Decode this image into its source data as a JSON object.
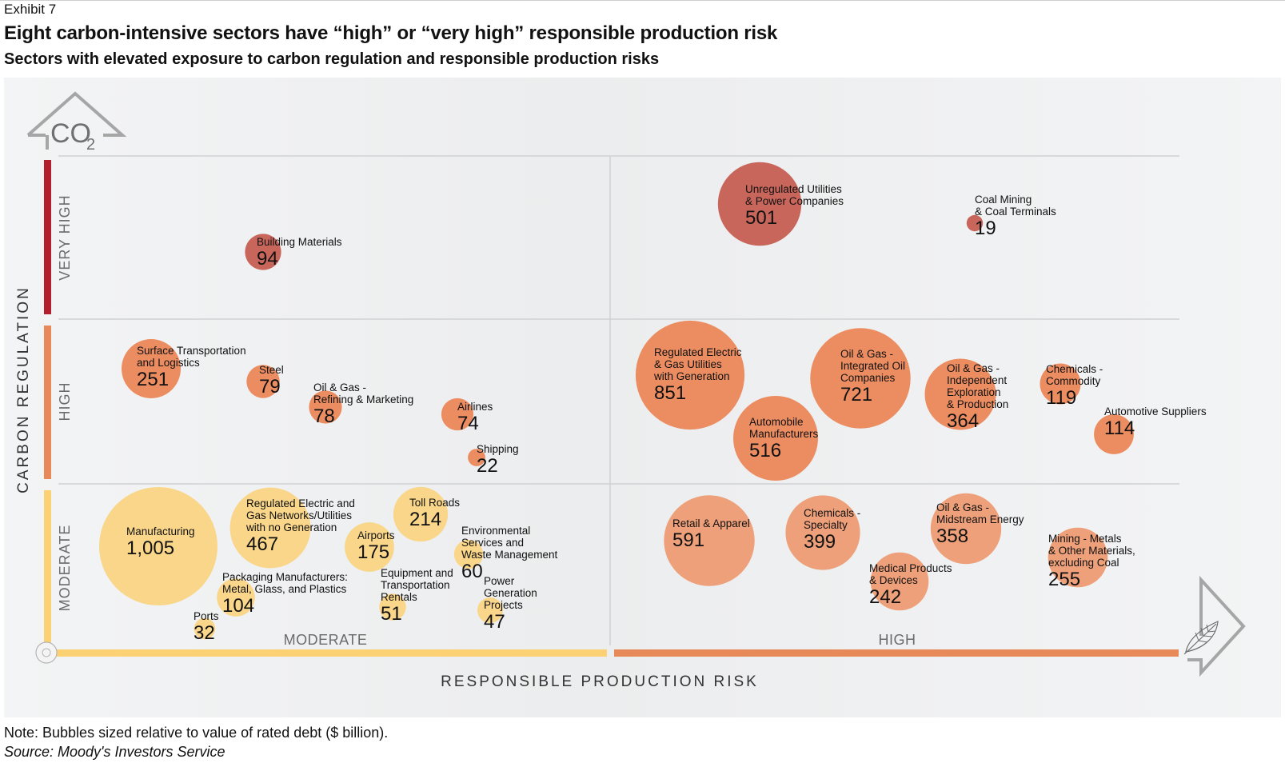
{
  "header": {
    "exhibit": "Exhibit 7",
    "title": "Eight carbon-intensive sectors have “high” or “very high” responsible production risk",
    "subtitle": "Sectors with elevated exposure to carbon regulation and responsible production risks"
  },
  "footer": {
    "note": "Note: Bubbles sized relative to value of rated debt ($ billion).",
    "source": "Source: Moody's Investors Service"
  },
  "icons": {
    "co2": "co2-arrow-icon",
    "co2_text": "CO",
    "co2_sub": "2",
    "leaf": "leaf-arrow-icon",
    "origin": "origin-circle-icon"
  },
  "chart_data": {
    "type": "bubble",
    "title": "Eight carbon-intensive sectors have “high” or “very high” responsible production risk",
    "subtitle": "Sectors with elevated exposure to carbon regulation and responsible production risks",
    "xlabel": "RESPONSIBLE PRODUCTION RISK",
    "ylabel": "CARBON REGULATION",
    "x_categories": [
      "MODERATE",
      "HIGH"
    ],
    "y_categories": [
      "MODERATE",
      "HIGH",
      "VERY HIGH"
    ],
    "size_unit": "Rated debt ($ billion)",
    "colors": {
      "VERY HIGH": "#c9665c",
      "HIGH": "#eb8a5c",
      "MODERATE": "#f9d689",
      "axis_moderate": "#fcd173",
      "axis_high": "#e8895a",
      "axis_very_high": "#b41f2e"
    },
    "grid": true,
    "series": [
      {
        "name": "Unregulated Utilities & Power Companies",
        "lines": [
          "Unregulated Utilities",
          "& Power Companies"
        ],
        "value": 501,
        "value_label": "501",
        "carbon": "VERY HIGH",
        "production": "HIGH"
      },
      {
        "name": "Coal Mining & Coal Terminals",
        "lines": [
          "Coal Mining",
          "& Coal Terminals"
        ],
        "value": 19,
        "value_label": "19",
        "carbon": "VERY HIGH",
        "production": "HIGH"
      },
      {
        "name": "Building Materials",
        "lines": [
          "Building Materials"
        ],
        "value": 94,
        "value_label": "94",
        "carbon": "VERY HIGH",
        "production": "MODERATE"
      },
      {
        "name": "Surface Transportation and Logistics",
        "lines": [
          "Surface Transportation",
          "and Logistics"
        ],
        "value": 251,
        "value_label": "251",
        "carbon": "HIGH",
        "production": "MODERATE"
      },
      {
        "name": "Steel",
        "lines": [
          "Steel"
        ],
        "value": 79,
        "value_label": "79",
        "carbon": "HIGH",
        "production": "MODERATE"
      },
      {
        "name": "Oil & Gas - Refining & Marketing",
        "lines": [
          "Oil & Gas -",
          "Refining & Marketing"
        ],
        "value": 78,
        "value_label": "78",
        "carbon": "HIGH",
        "production": "MODERATE"
      },
      {
        "name": "Airlines",
        "lines": [
          "Airlines"
        ],
        "value": 74,
        "value_label": "74",
        "carbon": "HIGH",
        "production": "MODERATE"
      },
      {
        "name": "Shipping",
        "lines": [
          "Shipping"
        ],
        "value": 22,
        "value_label": "22",
        "carbon": "HIGH",
        "production": "MODERATE"
      },
      {
        "name": "Regulated Electric & Gas Utilities with Generation",
        "lines": [
          "Regulated Electric",
          "& Gas Utilities",
          "with Generation"
        ],
        "value": 851,
        "value_label": "851",
        "carbon": "HIGH",
        "production": "HIGH"
      },
      {
        "name": "Automobile Manufacturers",
        "lines": [
          "Automobile",
          "Manufacturers"
        ],
        "value": 516,
        "value_label": "516",
        "carbon": "HIGH",
        "production": "HIGH"
      },
      {
        "name": "Oil & Gas - Integrated Oil Companies",
        "lines": [
          "Oil & Gas -",
          "Integrated Oil",
          "Companies"
        ],
        "value": 721,
        "value_label": "721",
        "carbon": "HIGH",
        "production": "HIGH"
      },
      {
        "name": "Oil & Gas - Independent Exploration & Production",
        "lines": [
          "Oil & Gas -",
          "Independent",
          "Exploration",
          "& Production"
        ],
        "value": 364,
        "value_label": "364",
        "carbon": "HIGH",
        "production": "HIGH"
      },
      {
        "name": "Chemicals - Commodity",
        "lines": [
          "Chemicals -",
          "Commodity"
        ],
        "value": 119,
        "value_label": "119",
        "carbon": "HIGH",
        "production": "HIGH"
      },
      {
        "name": "Automotive Suppliers",
        "lines": [
          "Automotive Suppliers"
        ],
        "value": 114,
        "value_label": "114",
        "carbon": "HIGH",
        "production": "HIGH"
      },
      {
        "name": "Manufacturing",
        "lines": [
          "Manufacturing"
        ],
        "value": 1005,
        "value_label": "1,005",
        "carbon": "MODERATE",
        "production": "MODERATE"
      },
      {
        "name": "Regulated Electric and Gas Networks/Utilities with no Generation",
        "lines": [
          "Regulated Electric and",
          "Gas Networks/Utilities",
          "with no Generation"
        ],
        "value": 467,
        "value_label": "467",
        "carbon": "MODERATE",
        "production": "MODERATE"
      },
      {
        "name": "Airports",
        "lines": [
          "Airports"
        ],
        "value": 175,
        "value_label": "175",
        "carbon": "MODERATE",
        "production": "MODERATE"
      },
      {
        "name": "Toll Roads",
        "lines": [
          "Toll Roads"
        ],
        "value": 214,
        "value_label": "214",
        "carbon": "MODERATE",
        "production": "MODERATE"
      },
      {
        "name": "Environmental Services and Waste Management",
        "lines": [
          "Environmental",
          "Services and",
          "Waste Management"
        ],
        "value": 60,
        "value_label": "60",
        "carbon": "MODERATE",
        "production": "MODERATE"
      },
      {
        "name": "Packaging Manufacturers: Metal, Glass, and Plastics",
        "lines": [
          "Packaging Manufacturers:",
          "Metal, Glass, and Plastics"
        ],
        "value": 104,
        "value_label": "104",
        "carbon": "MODERATE",
        "production": "MODERATE"
      },
      {
        "name": "Equipment and Transportation Rentals",
        "lines": [
          "Equipment and",
          "Transportation",
          "Rentals"
        ],
        "value": 51,
        "value_label": "51",
        "carbon": "MODERATE",
        "production": "MODERATE"
      },
      {
        "name": "Power Generation Projects",
        "lines": [
          "Power",
          "Generation",
          "Projects"
        ],
        "value": 47,
        "value_label": "47",
        "carbon": "MODERATE",
        "production": "MODERATE"
      },
      {
        "name": "Ports",
        "lines": [
          "Ports"
        ],
        "value": 32,
        "value_label": "32",
        "carbon": "MODERATE",
        "production": "MODERATE"
      },
      {
        "name": "Retail & Apparel",
        "lines": [
          "Retail & Apparel"
        ],
        "value": 591,
        "value_label": "591",
        "carbon": "MODERATE",
        "production": "HIGH"
      },
      {
        "name": "Chemicals - Specialty",
        "lines": [
          "Chemicals -",
          "Specialty"
        ],
        "value": 399,
        "value_label": "399",
        "carbon": "MODERATE",
        "production": "HIGH"
      },
      {
        "name": "Oil & Gas - Midstream Energy",
        "lines": [
          "Oil & Gas -",
          "Midstream Energy"
        ],
        "value": 358,
        "value_label": "358",
        "carbon": "MODERATE",
        "production": "HIGH"
      },
      {
        "name": "Medical Products & Devices",
        "lines": [
          "Medical Products",
          "& Devices"
        ],
        "value": 242,
        "value_label": "242",
        "carbon": "MODERATE",
        "production": "HIGH"
      },
      {
        "name": "Mining - Metals & Other Materials, excluding Coal",
        "lines": [
          "Mining - Metals",
          "& Other Materials,",
          "excluding Coal"
        ],
        "value": 255,
        "value_label": "255",
        "carbon": "MODERATE",
        "production": "HIGH"
      }
    ]
  }
}
